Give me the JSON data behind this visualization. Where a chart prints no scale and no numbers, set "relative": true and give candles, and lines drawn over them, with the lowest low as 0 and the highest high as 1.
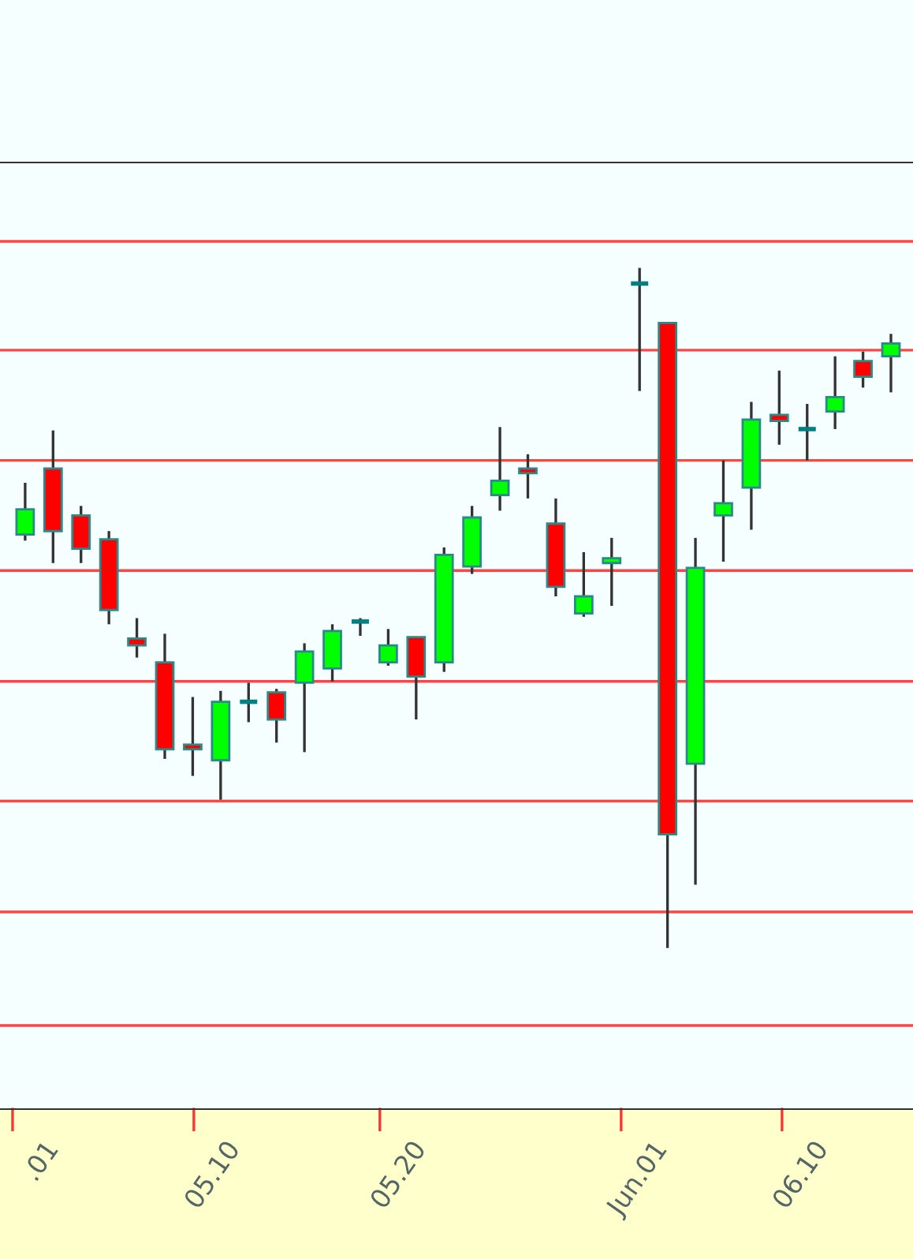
{
  "chart_data": {
    "type": "candlestick",
    "relative": true,
    "ref_lines": [
      {
        "axis": "y",
        "value": 1.039,
        "color": "#ff4444"
      },
      {
        "axis": "y",
        "value": 0.879,
        "color": "#ff4444"
      },
      {
        "axis": "y",
        "value": 0.717,
        "color": "#ff4444"
      },
      {
        "axis": "y",
        "value": 0.555,
        "color": "#ff4444"
      },
      {
        "axis": "y",
        "value": 0.392,
        "color": "#ff4444"
      },
      {
        "axis": "y",
        "value": 0.216,
        "color": "#ff4444"
      },
      {
        "axis": "y",
        "value": 0.053,
        "color": "#ff4444"
      },
      {
        "axis": "y",
        "value": -0.114,
        "color": "#ff4444"
      }
    ],
    "categories": [
      null,
      null,
      null,
      null,
      null,
      null,
      null,
      null,
      null,
      null,
      null,
      null,
      null,
      null,
      null,
      null,
      null,
      null,
      null,
      null,
      null,
      null,
      null,
      null,
      null,
      null,
      null,
      null,
      null,
      null,
      null,
      null
    ],
    "annotations": [
      ".01",
      "05.10",
      "05.20",
      "Jun.01",
      "06.10"
    ],
    "ohlc": [
      [
        0.608,
        0.684,
        0.599,
        0.645
      ],
      [
        0.705,
        0.761,
        0.566,
        0.613
      ],
      [
        0.636,
        0.65,
        0.566,
        0.587
      ],
      [
        0.601,
        0.613,
        0.476,
        0.497
      ],
      [
        0.455,
        0.485,
        0.427,
        0.445
      ],
      [
        0.42,
        0.462,
        0.278,
        0.292
      ],
      [
        0.299,
        0.369,
        0.253,
        0.292
      ],
      [
        0.276,
        0.378,
        0.218,
        0.362
      ],
      [
        0.362,
        0.39,
        0.332,
        0.362
      ],
      [
        0.376,
        0.381,
        0.302,
        0.336
      ],
      [
        0.39,
        0.448,
        0.288,
        0.436
      ],
      [
        0.411,
        0.476,
        0.392,
        0.466
      ],
      [
        0.48,
        0.485,
        0.459,
        0.48
      ],
      [
        0.42,
        0.469,
        0.415,
        0.445
      ],
      [
        0.457,
        0.457,
        0.336,
        0.399
      ],
      [
        0.42,
        0.589,
        0.406,
        0.578
      ],
      [
        0.561,
        0.65,
        0.55,
        0.633
      ],
      [
        0.666,
        0.766,
        0.643,
        0.687
      ],
      [
        0.705,
        0.726,
        0.661,
        0.698
      ],
      [
        0.624,
        0.661,
        0.517,
        0.531
      ],
      [
        0.492,
        0.582,
        0.487,
        0.517
      ],
      [
        0.566,
        0.603,
        0.503,
        0.573
      ],
      [
        0.977,
        1.0,
        0.819,
        0.977
      ],
      [
        0.919,
        0.919,
        0.0,
        0.167
      ],
      [
        0.271,
        0.603,
        0.093,
        0.559
      ],
      [
        0.636,
        0.717,
        0.568,
        0.654
      ],
      [
        0.677,
        0.803,
        0.615,
        0.777
      ],
      [
        0.784,
        0.849,
        0.74,
        0.775
      ],
      [
        0.763,
        0.8,
        0.717,
        0.763
      ],
      [
        0.789,
        0.87,
        0.763,
        0.81
      ],
      [
        0.863,
        0.877,
        0.824,
        0.84
      ],
      [
        0.87,
        0.903,
        0.817,
        0.889
      ]
    ],
    "colors": [
      "#00ff00",
      "#ff0000",
      "#ff0000",
      "#ff0000",
      "#ff0000",
      "#ff0000",
      "#ff0000",
      "#00ff00",
      "#008080",
      "#ff0000",
      "#00ff00",
      "#00ff00",
      "#008080",
      "#00ff00",
      "#ff0000",
      "#00ff00",
      "#00ff00",
      "#00ff00",
      "#ff0000",
      "#ff0000",
      "#00ff00",
      "#00ff00",
      "#008080",
      "#ff0000",
      "#00ff00",
      "#00ff00",
      "#00ff00",
      "#ff0000",
      "#008080",
      "#00ff00",
      "#ff0000",
      "#00ff00"
    ]
  }
}
